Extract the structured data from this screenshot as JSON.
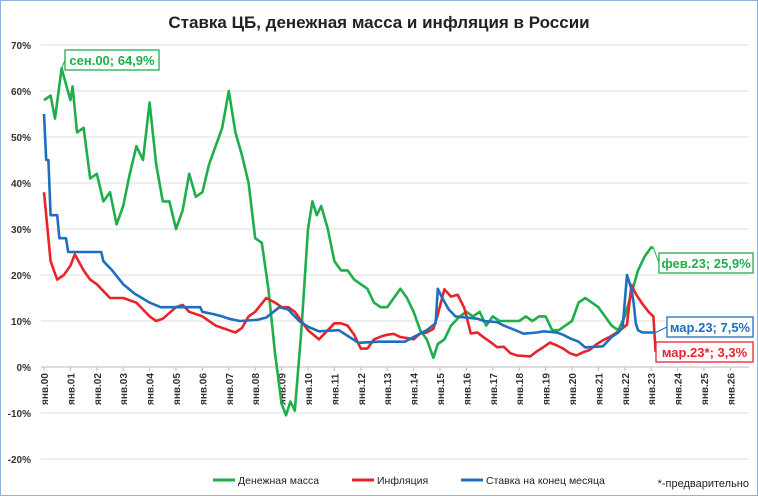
{
  "chart_data": {
    "type": "line",
    "title": "Ставка ЦБ, денежная масса и инфляция в России",
    "ylim": [
      -20,
      70
    ],
    "yticks": [
      "-20%",
      "-10%",
      "0%",
      "10%",
      "20%",
      "30%",
      "40%",
      "50%",
      "60%",
      "70%"
    ],
    "xticks": [
      "янв.00",
      "янв.01",
      "янв.02",
      "янв.03",
      "янв.04",
      "янв.05",
      "янв.06",
      "янв.07",
      "янв.08",
      "янв.09",
      "янв.10",
      "янв.11",
      "янв.12",
      "янв.13",
      "янв.14",
      "янв.15",
      "янв.16",
      "янв.17",
      "янв.18",
      "янв.19",
      "янв.20",
      "янв.21",
      "янв.22",
      "янв.23",
      "янв.24",
      "янв.25",
      "янв.26"
    ],
    "grid": true,
    "legend_position": "bottom",
    "footnote": "*-предварительно",
    "series": [
      {
        "name": "Денежная масса",
        "color": "#1fae4b",
        "points": [
          [
            "2000-01",
            58
          ],
          [
            "2000-04",
            59
          ],
          [
            "2000-06",
            54
          ],
          [
            "2000-09",
            64.9
          ],
          [
            "2001-01",
            58
          ],
          [
            "2001-02",
            61
          ],
          [
            "2001-04",
            51
          ],
          [
            "2001-07",
            52
          ],
          [
            "2001-10",
            41
          ],
          [
            "2002-01",
            42
          ],
          [
            "2002-04",
            36
          ],
          [
            "2002-07",
            38
          ],
          [
            "2002-10",
            31
          ],
          [
            "2003-01",
            35
          ],
          [
            "2003-04",
            42
          ],
          [
            "2003-07",
            48
          ],
          [
            "2003-10",
            45
          ],
          [
            "2004-01",
            57.5
          ],
          [
            "2004-04",
            44
          ],
          [
            "2004-07",
            36
          ],
          [
            "2004-10",
            36
          ],
          [
            "2005-01",
            30
          ],
          [
            "2005-04",
            34
          ],
          [
            "2005-07",
            42
          ],
          [
            "2005-10",
            37
          ],
          [
            "2006-01",
            38
          ],
          [
            "2006-04",
            44
          ],
          [
            "2006-07",
            48
          ],
          [
            "2006-10",
            52
          ],
          [
            "2007-01",
            60
          ],
          [
            "2007-04",
            51
          ],
          [
            "2007-07",
            46
          ],
          [
            "2007-10",
            40
          ],
          [
            "2008-01",
            28
          ],
          [
            "2008-04",
            27
          ],
          [
            "2008-07",
            17
          ],
          [
            "2008-10",
            3
          ],
          [
            "2009-01",
            -8
          ],
          [
            "2009-03",
            -10.5
          ],
          [
            "2009-05",
            -7.5
          ],
          [
            "2009-07",
            -9.5
          ],
          [
            "2009-10",
            8
          ],
          [
            "2010-01",
            30
          ],
          [
            "2010-03",
            36
          ],
          [
            "2010-05",
            33
          ],
          [
            "2010-07",
            35
          ],
          [
            "2010-10",
            30
          ],
          [
            "2011-01",
            23
          ],
          [
            "2011-04",
            21
          ],
          [
            "2011-07",
            21
          ],
          [
            "2011-10",
            19
          ],
          [
            "2012-01",
            18
          ],
          [
            "2012-04",
            17
          ],
          [
            "2012-07",
            14
          ],
          [
            "2012-10",
            13
          ],
          [
            "2013-01",
            13
          ],
          [
            "2013-04",
            15
          ],
          [
            "2013-07",
            17
          ],
          [
            "2013-10",
            15
          ],
          [
            "2014-01",
            12
          ],
          [
            "2014-04",
            8
          ],
          [
            "2014-07",
            6
          ],
          [
            "2014-10",
            2
          ],
          [
            "2014-12",
            5
          ],
          [
            "2015-03",
            6
          ],
          [
            "2015-06",
            9
          ],
          [
            "2015-10",
            11
          ],
          [
            "2016-01",
            12
          ],
          [
            "2016-04",
            11
          ],
          [
            "2016-07",
            12
          ],
          [
            "2016-10",
            9
          ],
          [
            "2017-01",
            11
          ],
          [
            "2017-04",
            10
          ],
          [
            "2017-07",
            10
          ],
          [
            "2017-10",
            10
          ],
          [
            "2018-01",
            10
          ],
          [
            "2018-04",
            11
          ],
          [
            "2018-07",
            10
          ],
          [
            "2018-10",
            11
          ],
          [
            "2019-01",
            11
          ],
          [
            "2019-04",
            8
          ],
          [
            "2019-07",
            8
          ],
          [
            "2019-10",
            9
          ],
          [
            "2020-01",
            10
          ],
          [
            "2020-04",
            14
          ],
          [
            "2020-07",
            15
          ],
          [
            "2020-10",
            14
          ],
          [
            "2021-01",
            13
          ],
          [
            "2021-04",
            11
          ],
          [
            "2021-07",
            9
          ],
          [
            "2021-10",
            8
          ],
          [
            "2022-01",
            11
          ],
          [
            "2022-04",
            16
          ],
          [
            "2022-07",
            21
          ],
          [
            "2022-10",
            24
          ],
          [
            "2023-01",
            26
          ],
          [
            "2023-02",
            25.9
          ]
        ]
      },
      {
        "name": "Инфляция",
        "color": "#e8242a",
        "points": [
          [
            "2000-01",
            38
          ],
          [
            "2000-04",
            23
          ],
          [
            "2000-07",
            19
          ],
          [
            "2000-10",
            20
          ],
          [
            "2001-01",
            22
          ],
          [
            "2001-03",
            24.5
          ],
          [
            "2001-07",
            21
          ],
          [
            "2001-10",
            19
          ],
          [
            "2002-01",
            18
          ],
          [
            "2002-07",
            15
          ],
          [
            "2003-01",
            15
          ],
          [
            "2003-07",
            14
          ],
          [
            "2004-01",
            11
          ],
          [
            "2004-04",
            10
          ],
          [
            "2004-07",
            10.5
          ],
          [
            "2005-01",
            13
          ],
          [
            "2005-04",
            13.5
          ],
          [
            "2005-07",
            12
          ],
          [
            "2006-01",
            11
          ],
          [
            "2006-07",
            9
          ],
          [
            "2007-01",
            8
          ],
          [
            "2007-04",
            7.5
          ],
          [
            "2007-07",
            8.5
          ],
          [
            "2007-10",
            11
          ],
          [
            "2008-01",
            12
          ],
          [
            "2008-06",
            15
          ],
          [
            "2008-10",
            14
          ],
          [
            "2009-01",
            13
          ],
          [
            "2009-04",
            13
          ],
          [
            "2009-07",
            12
          ],
          [
            "2009-10",
            10
          ],
          [
            "2010-01",
            8
          ],
          [
            "2010-06",
            6
          ],
          [
            "2010-10",
            8
          ],
          [
            "2011-01",
            9.5
          ],
          [
            "2011-04",
            9.5
          ],
          [
            "2011-07",
            9
          ],
          [
            "2011-10",
            7
          ],
          [
            "2012-01",
            4
          ],
          [
            "2012-04",
            4
          ],
          [
            "2012-07",
            6
          ],
          [
            "2012-10",
            6.6
          ],
          [
            "2013-01",
            7
          ],
          [
            "2013-04",
            7.2
          ],
          [
            "2013-07",
            6.5
          ],
          [
            "2013-10",
            6.3
          ],
          [
            "2014-01",
            6
          ],
          [
            "2014-04",
            7.3
          ],
          [
            "2014-07",
            7.5
          ],
          [
            "2014-10",
            8.3
          ],
          [
            "2014-12",
            11.4
          ],
          [
            "2015-03",
            16.9
          ],
          [
            "2015-06",
            15.3
          ],
          [
            "2015-09",
            15.7
          ],
          [
            "2015-12",
            12.9
          ],
          [
            "2016-03",
            7.3
          ],
          [
            "2016-06",
            7.5
          ],
          [
            "2016-09",
            6.4
          ],
          [
            "2016-12",
            5.4
          ],
          [
            "2017-03",
            4.3
          ],
          [
            "2017-06",
            4.4
          ],
          [
            "2017-09",
            3
          ],
          [
            "2017-12",
            2.5
          ],
          [
            "2018-03",
            2.4
          ],
          [
            "2018-06",
            2.3
          ],
          [
            "2018-09",
            3.4
          ],
          [
            "2018-12",
            4.3
          ],
          [
            "2019-03",
            5.3
          ],
          [
            "2019-06",
            4.7
          ],
          [
            "2019-09",
            4
          ],
          [
            "2019-12",
            3
          ],
          [
            "2020-03",
            2.5
          ],
          [
            "2020-06",
            3.2
          ],
          [
            "2020-09",
            3.7
          ],
          [
            "2020-12",
            4.9
          ],
          [
            "2021-03",
            5.8
          ],
          [
            "2021-06",
            6.5
          ],
          [
            "2021-09",
            7.4
          ],
          [
            "2021-12",
            8.4
          ],
          [
            "2022-02",
            9.2
          ],
          [
            "2022-04",
            17.8
          ],
          [
            "2022-06",
            15.9
          ],
          [
            "2022-09",
            13.7
          ],
          [
            "2022-12",
            11.9
          ],
          [
            "2023-02",
            11
          ],
          [
            "2023-03",
            3.3
          ]
        ]
      },
      {
        "name": "Ставка на конец месяца",
        "color": "#1f6fbf",
        "points": [
          [
            "2000-01",
            55
          ],
          [
            "2000-02",
            45
          ],
          [
            "2000-03",
            45
          ],
          [
            "2000-04",
            33
          ],
          [
            "2000-07",
            33
          ],
          [
            "2000-08",
            28
          ],
          [
            "2000-11",
            28
          ],
          [
            "2000-12",
            25
          ],
          [
            "2002-03",
            25
          ],
          [
            "2002-04",
            23
          ],
          [
            "2002-08",
            21
          ],
          [
            "2003-01",
            18
          ],
          [
            "2003-06",
            16
          ],
          [
            "2004-01",
            14
          ],
          [
            "2004-06",
            13
          ],
          [
            "2005-12",
            13
          ],
          [
            "2006-01",
            12
          ],
          [
            "2006-06",
            11.5
          ],
          [
            "2006-10",
            11
          ],
          [
            "2007-01",
            10.5
          ],
          [
            "2007-06",
            10
          ],
          [
            "2008-02",
            10.25
          ],
          [
            "2008-06",
            10.75
          ],
          [
            "2008-12",
            13
          ],
          [
            "2009-04",
            12.5
          ],
          [
            "2009-06",
            11.5
          ],
          [
            "2009-09",
            10
          ],
          [
            "2010-01",
            8.75
          ],
          [
            "2010-06",
            7.75
          ],
          [
            "2011-03",
            8
          ],
          [
            "2011-12",
            5.25
          ],
          [
            "2012-09",
            5.5
          ],
          [
            "2013-09",
            5.5
          ],
          [
            "2014-03",
            7
          ],
          [
            "2014-07",
            8
          ],
          [
            "2014-11",
            9.5
          ],
          [
            "2014-12",
            17
          ],
          [
            "2015-02",
            15
          ],
          [
            "2015-05",
            12.5
          ],
          [
            "2015-08",
            11
          ],
          [
            "2016-06",
            10.5
          ],
          [
            "2016-09",
            10
          ],
          [
            "2017-03",
            9.75
          ],
          [
            "2017-06",
            9
          ],
          [
            "2017-10",
            8.25
          ],
          [
            "2018-03",
            7.25
          ],
          [
            "2018-09",
            7.5
          ],
          [
            "2018-12",
            7.75
          ],
          [
            "2019-06",
            7.5
          ],
          [
            "2019-09",
            7
          ],
          [
            "2019-12",
            6.25
          ],
          [
            "2020-04",
            5.5
          ],
          [
            "2020-07",
            4.25
          ],
          [
            "2021-03",
            4.5
          ],
          [
            "2021-04",
            5
          ],
          [
            "2021-07",
            6.5
          ],
          [
            "2021-10",
            7.5
          ],
          [
            "2021-12",
            8.5
          ],
          [
            "2022-02",
            20
          ],
          [
            "2022-04",
            17
          ],
          [
            "2022-05",
            14
          ],
          [
            "2022-06",
            9.5
          ],
          [
            "2022-07",
            8
          ],
          [
            "2022-09",
            7.5
          ],
          [
            "2023-03",
            7.5
          ]
        ]
      }
    ],
    "annotations": [
      {
        "text": "сен.00; 64,9%",
        "series": 0,
        "at": [
          "2000-09",
          64.9
        ]
      },
      {
        "text": "фев.23; 25,9%",
        "series": 0,
        "at": [
          "2023-02",
          25.9
        ]
      },
      {
        "text": "мар.23; 7,5%",
        "series": 2,
        "at": [
          "2023-03",
          7.5
        ]
      },
      {
        "text": "мар.23*; 3,3%",
        "series": 1,
        "at": [
          "2023-03",
          3.3
        ]
      }
    ]
  }
}
